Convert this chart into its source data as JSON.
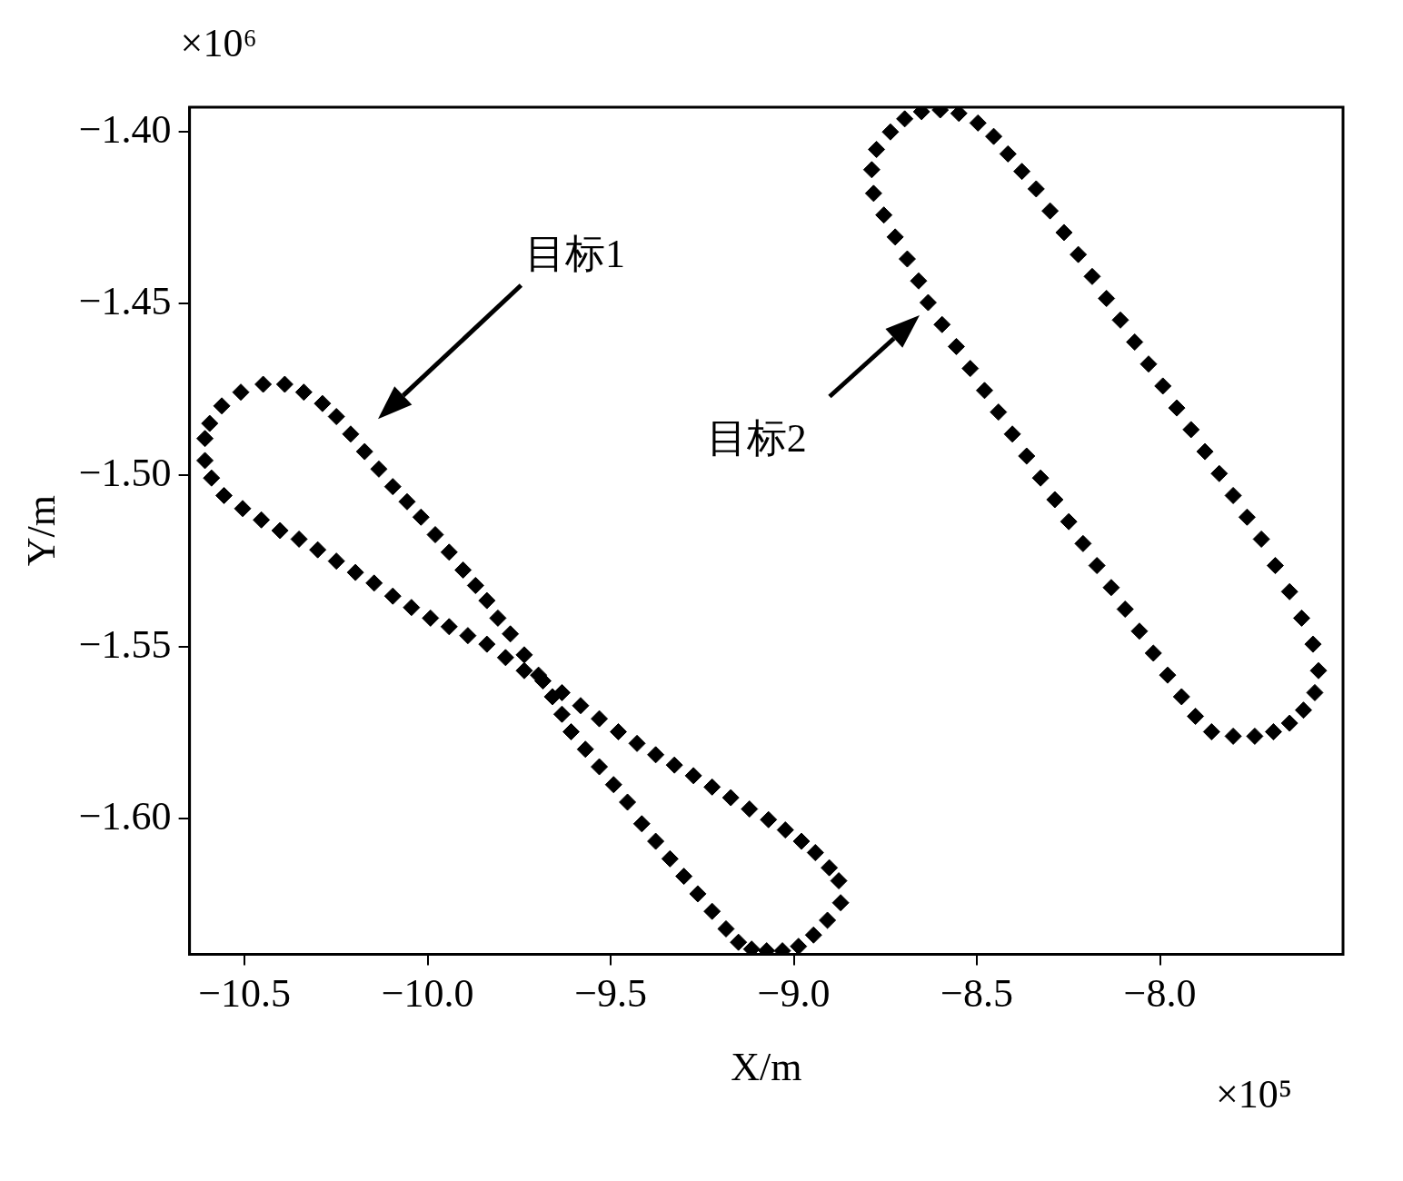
{
  "chart_data": {
    "type": "scatter",
    "xlabel": "X/m",
    "ylabel": "Y/m",
    "marker": "diamond",
    "xlim": [
      -10.65,
      -7.5
    ],
    "ylim": [
      -1.6395,
      -1.3928
    ],
    "xticks": [
      {
        "value": -10.5,
        "label": "−10.5"
      },
      {
        "value": -10,
        "label": "−10.0"
      },
      {
        "value": -9.5,
        "label": "−9.5"
      },
      {
        "value": -9,
        "label": "−9.0"
      },
      {
        "value": -8.5,
        "label": "−8.5"
      },
      {
        "value": -8,
        "label": "−8.0"
      }
    ],
    "yticks": [
      {
        "value": -1.4,
        "label": "−1.40"
      },
      {
        "value": -1.45,
        "label": "−1.45"
      },
      {
        "value": -1.5,
        "label": "−1.50"
      },
      {
        "value": -1.55,
        "label": "−1.55"
      },
      {
        "value": -1.6,
        "label": "−1.60"
      }
    ],
    "annotations": [
      "×10⁶",
      "×10⁵",
      "目标1",
      "目标2"
    ],
    "series": [
      {
        "color": "#000000",
        "x": [
          -10.608,
          -10.595,
          -10.562,
          -10.51,
          -10.449,
          -10.39,
          -10.338,
          -10.287,
          -10.249,
          -10.21,
          -10.172,
          -10.133,
          -10.095,
          -10.056,
          -10.018,
          -9.979,
          -9.941,
          -9.903,
          -9.869,
          -9.838,
          -9.808,
          -9.774,
          -9.736,
          -9.697,
          -9.659,
          -9.633,
          -9.608,
          -9.569,
          -9.531,
          -9.492,
          -9.454,
          -9.415,
          -9.377,
          -9.338,
          -9.3,
          -9.262,
          -9.223,
          -9.185,
          -9.151,
          -9.115,
          -9.074,
          -9.031,
          -8.987,
          -8.946,
          -8.908,
          -8.872,
          -8.877,
          -8.903,
          -8.941,
          -8.979,
          -9.023,
          -9.069,
          -9.121,
          -9.172,
          -9.223,
          -9.274,
          -9.326,
          -9.377,
          -9.428,
          -9.479,
          -9.531,
          -9.582,
          -9.633,
          -9.685,
          -9.736,
          -9.787,
          -9.838,
          -9.89,
          -9.941,
          -9.992,
          -10.044,
          -10.095,
          -10.146,
          -10.197,
          -10.249,
          -10.3,
          -10.351,
          -10.403,
          -10.454,
          -10.505,
          -10.556,
          -10.59,
          -10.608
        ],
        "values": [
          -1.4893,
          -1.4849,
          -1.4798,
          -1.4758,
          -1.4735,
          -1.4735,
          -1.4758,
          -1.4791,
          -1.4829,
          -1.488,
          -1.4931,
          -1.4982,
          -1.5033,
          -1.5077,
          -1.5122,
          -1.5173,
          -1.5224,
          -1.5276,
          -1.5321,
          -1.5365,
          -1.5416,
          -1.5462,
          -1.5523,
          -1.5582,
          -1.5645,
          -1.5696,
          -1.5747,
          -1.5798,
          -1.5849,
          -1.5901,
          -1.5952,
          -1.6015,
          -1.6066,
          -1.6117,
          -1.6168,
          -1.6219,
          -1.627,
          -1.6321,
          -1.636,
          -1.638,
          -1.6385,
          -1.6385,
          -1.6372,
          -1.6339,
          -1.6296,
          -1.6245,
          -1.6181,
          -1.6143,
          -1.6099,
          -1.6066,
          -1.6033,
          -1.6003,
          -1.5972,
          -1.5939,
          -1.5908,
          -1.5875,
          -1.5844,
          -1.5814,
          -1.5781,
          -1.5747,
          -1.5709,
          -1.5671,
          -1.5633,
          -1.5599,
          -1.5569,
          -1.5531,
          -1.5492,
          -1.5467,
          -1.5441,
          -1.5416,
          -1.5385,
          -1.5352,
          -1.5314,
          -1.5283,
          -1.525,
          -1.5217,
          -1.5186,
          -1.5161,
          -1.513,
          -1.5097,
          -1.5059,
          -1.5008,
          -1.4957
        ]
      },
      {
        "color": "#000000",
        "x": [
          -8.6,
          -8.549,
          -8.497,
          -8.454,
          -8.415,
          -8.377,
          -8.338,
          -8.3,
          -8.262,
          -8.223,
          -8.185,
          -8.146,
          -8.108,
          -8.069,
          -8.031,
          -7.992,
          -7.954,
          -7.915,
          -7.877,
          -7.838,
          -7.8,
          -7.762,
          -7.723,
          -7.685,
          -7.646,
          -7.613,
          -7.582,
          -7.567,
          -7.577,
          -7.608,
          -7.646,
          -7.69,
          -7.741,
          -7.8,
          -7.859,
          -7.903,
          -7.941,
          -7.979,
          -8.018,
          -8.056,
          -8.095,
          -8.133,
          -8.172,
          -8.21,
          -8.249,
          -8.287,
          -8.326,
          -8.364,
          -8.403,
          -8.441,
          -8.479,
          -8.518,
          -8.556,
          -8.595,
          -8.633,
          -8.659,
          -8.69,
          -8.723,
          -8.754,
          -8.782,
          -8.787,
          -8.774,
          -8.736,
          -8.697,
          -8.651
        ],
        "values": [
          -1.3936,
          -1.3946,
          -1.3974,
          -1.4013,
          -1.4064,
          -1.4115,
          -1.4166,
          -1.423,
          -1.4293,
          -1.4357,
          -1.4421,
          -1.4485,
          -1.4548,
          -1.4612,
          -1.4676,
          -1.474,
          -1.4804,
          -1.4867,
          -1.4931,
          -1.4995,
          -1.5059,
          -1.5122,
          -1.5186,
          -1.5263,
          -1.5339,
          -1.5416,
          -1.5492,
          -1.5569,
          -1.5633,
          -1.5684,
          -1.5722,
          -1.5747,
          -1.576,
          -1.576,
          -1.5747,
          -1.5702,
          -1.5645,
          -1.5582,
          -1.5518,
          -1.5454,
          -1.539,
          -1.5327,
          -1.5263,
          -1.5199,
          -1.5135,
          -1.5071,
          -1.5008,
          -1.4944,
          -1.488,
          -1.4816,
          -1.4753,
          -1.4689,
          -1.4625,
          -1.4561,
          -1.4497,
          -1.4434,
          -1.437,
          -1.4306,
          -1.4242,
          -1.4179,
          -1.411,
          -1.4051,
          -1.4,
          -1.3962,
          -1.3941
        ]
      }
    ]
  }
}
